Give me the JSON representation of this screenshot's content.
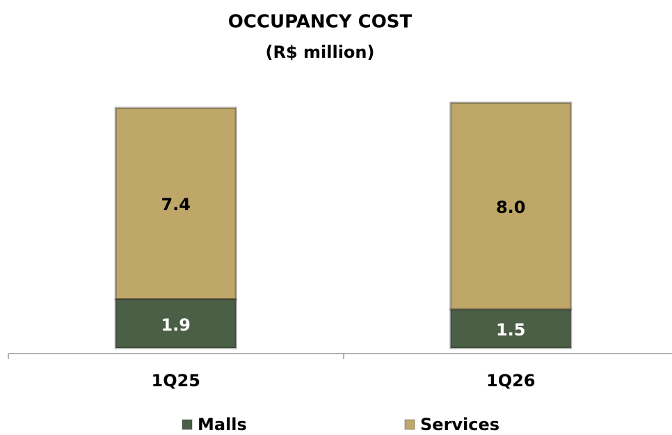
{
  "chart_data": {
    "type": "stacked-bar",
    "title": "OCCUPANCY COST",
    "subtitle": "(R$ million)",
    "categories": [
      "1Q25",
      "1Q26"
    ],
    "series": [
      {
        "name": "Malls",
        "color": "#4b5f46",
        "values": [
          1.9,
          1.5
        ],
        "value_labels": [
          "1.9",
          "1.5"
        ]
      },
      {
        "name": "Services",
        "color": "#bea769",
        "values": [
          7.4,
          8
        ],
        "value_labels": [
          "7.4",
          "8.0"
        ]
      }
    ],
    "ylim": [
      0,
      10
    ]
  }
}
